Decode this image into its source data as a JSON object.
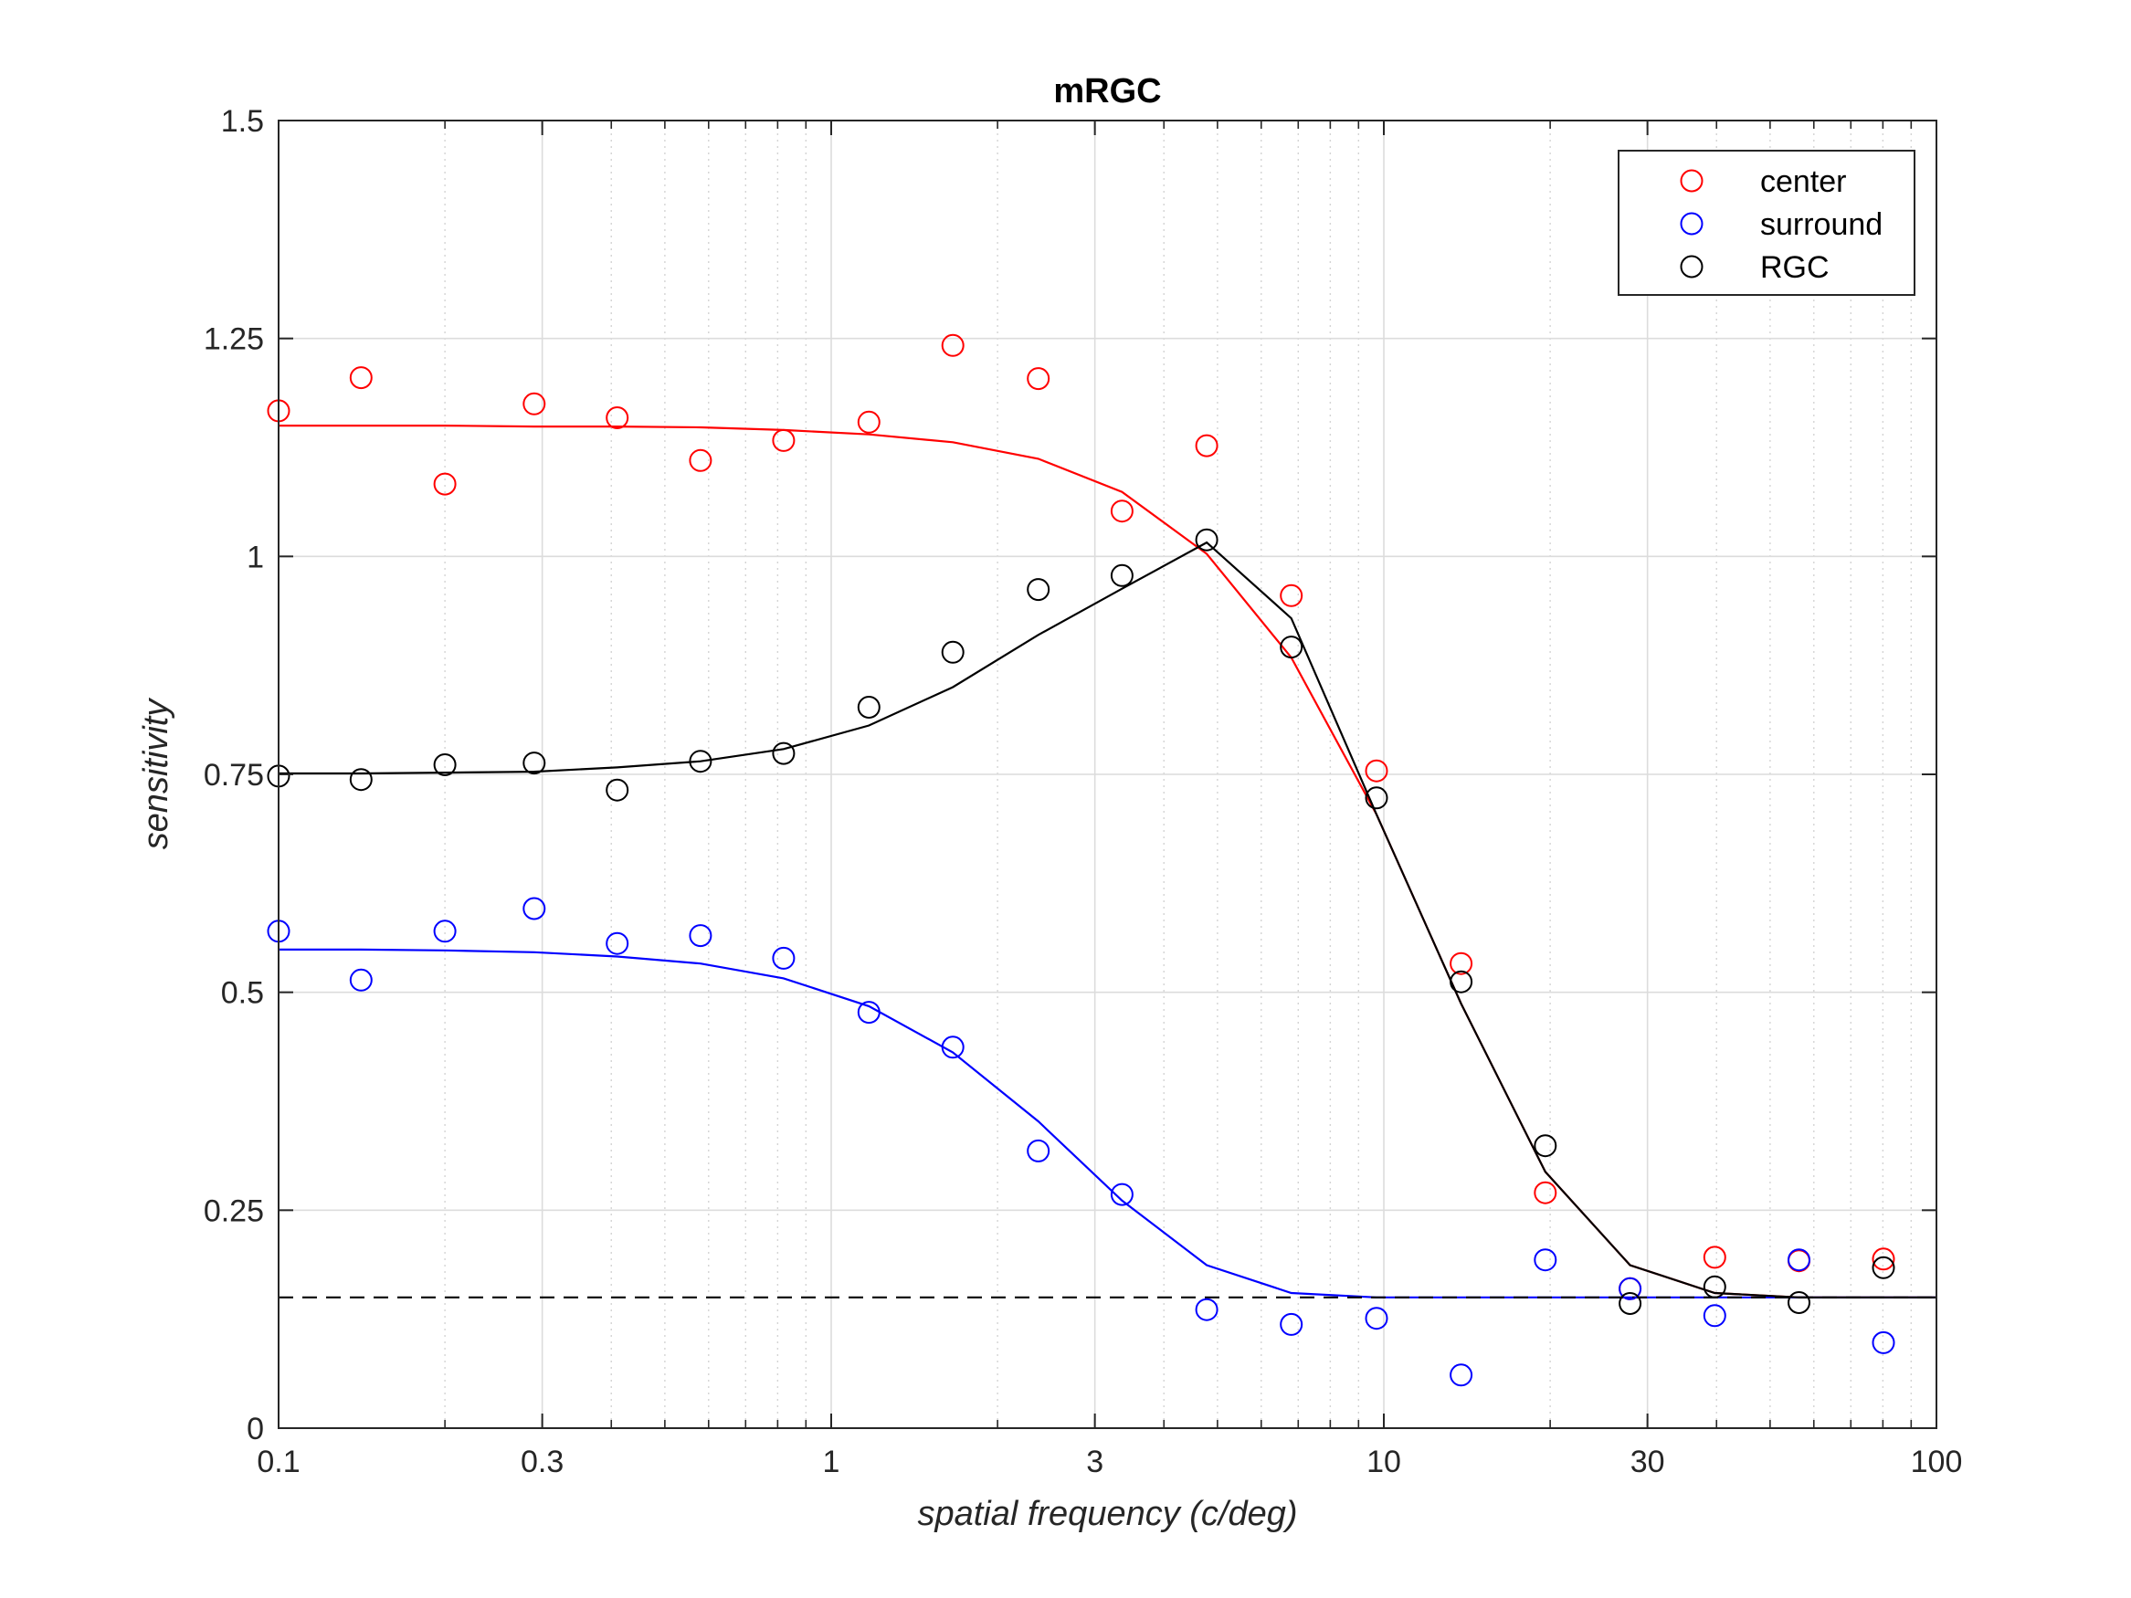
{
  "chart_data": {
    "type": "scatter",
    "title": "mRGC",
    "xlabel": "spatial frequency (c/deg)",
    "ylabel": "sensitivity",
    "xscale": "log",
    "xlim": [
      0.1,
      100
    ],
    "ylim": [
      0,
      1.5
    ],
    "xticks": [
      0.1,
      0.3,
      1,
      3,
      10,
      30,
      100
    ],
    "xtick_labels": [
      "0.1",
      "0.3",
      "1",
      "3",
      "10",
      "30",
      "100"
    ],
    "yticks": [
      0,
      0.25,
      0.5,
      0.75,
      1,
      1.25,
      1.5
    ],
    "ytick_labels": [
      "0",
      "0.25",
      "0.5",
      "0.75",
      "1",
      "1.25",
      "1.5"
    ],
    "grid": true,
    "legend_position": "top-right",
    "baseline": 0.15,
    "x": [
      0.1,
      0.141,
      0.2,
      0.29,
      0.41,
      0.58,
      0.82,
      1.17,
      1.66,
      2.37,
      3.36,
      4.78,
      6.8,
      9.7,
      13.8,
      19.6,
      27.9,
      39.7,
      56.4,
      80.2
    ],
    "series": [
      {
        "name": "center",
        "color": "#ff0000",
        "values": [
          1.167,
          1.205,
          1.083,
          1.175,
          1.159,
          1.11,
          1.133,
          1.154,
          1.242,
          1.204,
          1.052,
          1.127,
          0.955,
          0.754,
          0.533,
          0.27,
          0.16,
          0.196,
          0.192,
          0.194
        ],
        "fit": [
          1.15,
          1.15,
          1.15,
          1.149,
          1.149,
          1.148,
          1.145,
          1.14,
          1.131,
          1.112,
          1.074,
          1.003,
          0.884,
          0.704,
          0.487,
          0.294,
          0.187,
          0.155,
          0.15,
          0.15
        ]
      },
      {
        "name": "surround",
        "color": "#0000ff",
        "values": [
          0.57,
          0.514,
          0.57,
          0.596,
          0.556,
          0.565,
          0.539,
          0.477,
          0.437,
          0.318,
          0.268,
          0.136,
          0.119,
          0.126,
          0.061,
          0.193,
          0.16,
          0.129,
          0.193,
          0.098
        ],
        "fit": [
          0.549,
          0.549,
          0.548,
          0.546,
          0.541,
          0.533,
          0.516,
          0.484,
          0.431,
          0.352,
          0.261,
          0.187,
          0.155,
          0.15,
          0.15,
          0.15,
          0.15,
          0.15,
          0.15,
          0.15
        ]
      },
      {
        "name": "RGC",
        "color": "#000000",
        "values": [
          0.748,
          0.744,
          0.761,
          0.763,
          0.732,
          0.765,
          0.774,
          0.827,
          0.89,
          0.962,
          0.978,
          1.019,
          0.896,
          0.723,
          0.512,
          0.324,
          0.143,
          0.162,
          0.144,
          0.184
        ],
        "fit": [
          0.751,
          0.751,
          0.752,
          0.753,
          0.758,
          0.765,
          0.779,
          0.806,
          0.85,
          0.91,
          0.963,
          1.016,
          0.929,
          0.704,
          0.487,
          0.294,
          0.187,
          0.155,
          0.15,
          0.15
        ]
      }
    ]
  }
}
